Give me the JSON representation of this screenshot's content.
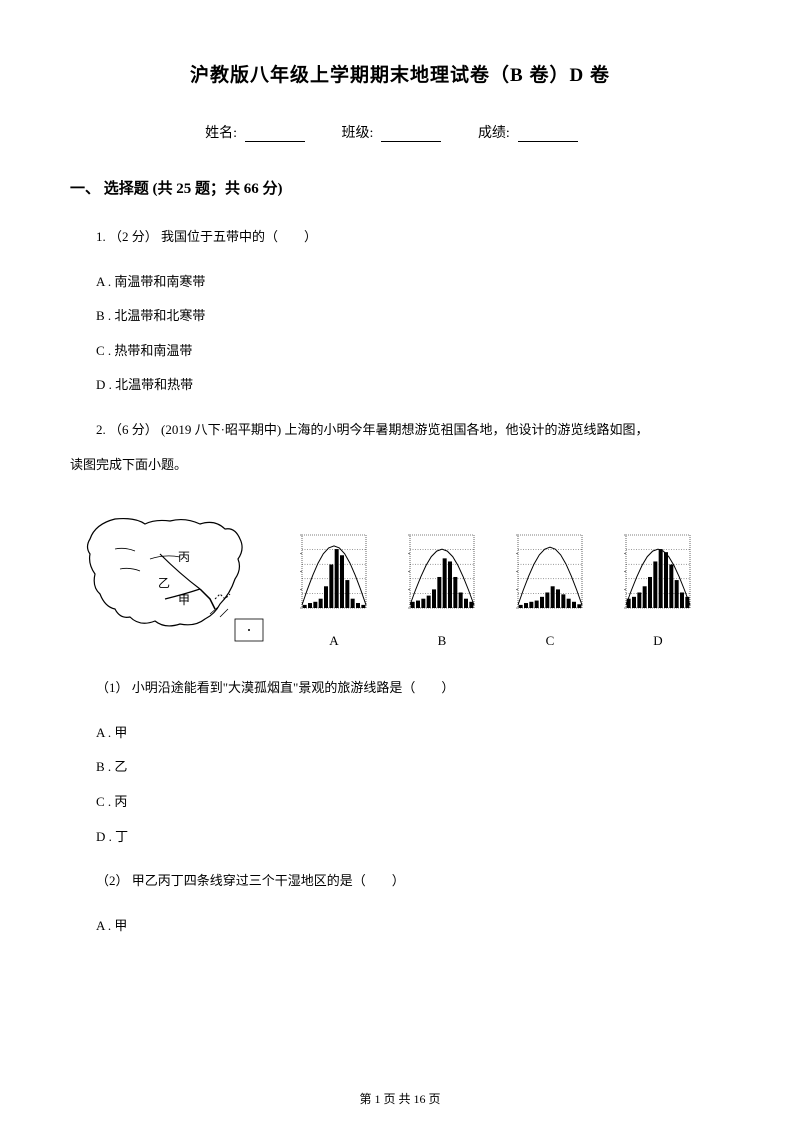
{
  "title": "沪教版八年级上学期期末地理试卷（B 卷）D 卷",
  "info": {
    "name_label": "姓名:",
    "class_label": "班级:",
    "score_label": "成绩:"
  },
  "section_header": "一、 选择题 (共 25 题；共 66 分)",
  "q1": {
    "stem": "1. （2 分） 我国位于五带中的（　　）",
    "opt_a": "A . 南温带和南寒带",
    "opt_b": "B . 北温带和北寒带",
    "opt_c": "C . 热带和南温带",
    "opt_d": "D . 北温带和热带"
  },
  "q2": {
    "stem_line1": "2. （6 分） (2019 八下·昭平期中) 上海的小明今年暑期想游览祖国各地，他设计的游览线路如图，",
    "stem_line2": "读图完成下面小题。",
    "map_labels": {
      "bing": "丙",
      "yi": "乙",
      "jia": "甲"
    },
    "charts": {
      "a": "A",
      "b": "B",
      "c": "C",
      "d": "D"
    },
    "sub1": {
      "stem": "（1） 小明沿途能看到\"大漠孤烟直\"景观的旅游线路是（　　）",
      "opt_a": "A . 甲",
      "opt_b": "B . 乙",
      "opt_c": "C . 丙",
      "opt_d": "D . 丁"
    },
    "sub2": {
      "stem": "（2） 甲乙丙丁四条线穿过三个干湿地区的是（　　）",
      "opt_a": "A . 甲"
    }
  },
  "footer": "第 1 页 共 16 页",
  "colors": {
    "text": "#000000",
    "bg": "#ffffff",
    "stroke": "#000000"
  },
  "chart_data": {
    "A": {
      "bars": [
        0.05,
        0.08,
        0.1,
        0.15,
        0.35,
        0.7,
        0.95,
        0.85,
        0.45,
        0.15,
        0.08,
        0.05
      ],
      "curve_peak": 0.9
    },
    "B": {
      "bars": [
        0.1,
        0.12,
        0.15,
        0.2,
        0.3,
        0.5,
        0.8,
        0.75,
        0.5,
        0.25,
        0.15,
        0.1
      ],
      "curve_peak": 0.85
    },
    "C": {
      "bars": [
        0.05,
        0.08,
        0.1,
        0.12,
        0.18,
        0.25,
        0.35,
        0.3,
        0.22,
        0.15,
        0.1,
        0.06
      ],
      "curve_peak": 0.88
    },
    "D": {
      "bars": [
        0.15,
        0.18,
        0.25,
        0.35,
        0.5,
        0.75,
        0.95,
        0.9,
        0.7,
        0.45,
        0.25,
        0.18
      ],
      "curve_peak": 0.85
    }
  }
}
